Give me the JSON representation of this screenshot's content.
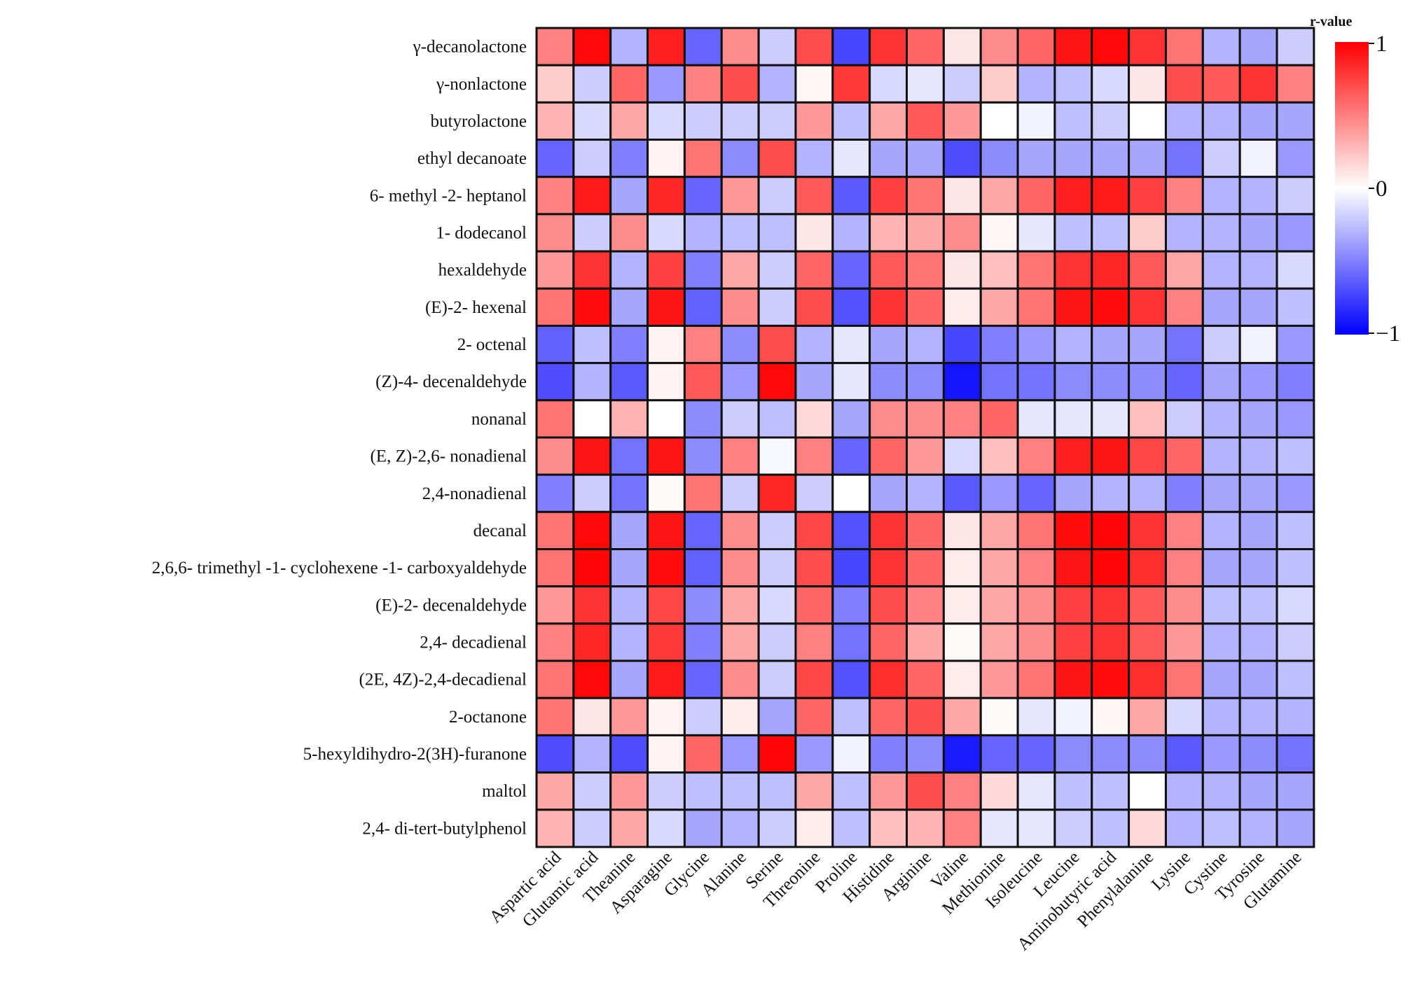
{
  "chart_data": {
    "type": "heatmap",
    "title": "",
    "rows": [
      "γ-decanolactone",
      "γ-nonlactone",
      "butyrolactone",
      "ethyl decanoate",
      "6- methyl -2- heptanol",
      "1- dodecanol",
      "hexaldehyde",
      "(E)-2- hexenal",
      "2- octenal",
      "(Z)-4- decenaldehyde",
      "nonanal",
      "(E, Z)-2,6- nonadienal",
      "2,4-nonadienal",
      "decanal",
      "2,6,6- trimethyl -1- cyclohexene -1- carboxyaldehyde",
      "(E)-2- decenaldehyde",
      "2,4- decadienal",
      "(2E, 4Z)-2,4-decadienal",
      "2-octanone",
      "5-hexyldihydro-2(3H)-furanone",
      "maltol",
      "2,4- di-tert-butylphenol"
    ],
    "columns": [
      "Aspartic acid",
      "Glutamic acid",
      "Theanine",
      "Asparagine",
      "Glycine",
      "Alanine",
      "Serine",
      "Threonine",
      "Proline",
      "Histidine",
      "Arginine",
      "Valine",
      "Methionine",
      "Isoleucine",
      "Leucine",
      "Aminobutyric acid",
      "Phenylalanine",
      "Lysine",
      "Cystine",
      "Tyrosine",
      "Glutamine"
    ],
    "values": [
      [
        0.5,
        0.97,
        -0.3,
        0.88,
        -0.6,
        0.45,
        -0.2,
        0.7,
        -0.72,
        0.8,
        0.6,
        0.1,
        0.45,
        0.6,
        0.92,
        0.97,
        0.8,
        0.55,
        -0.3,
        -0.35,
        -0.2
      ],
      [
        0.2,
        -0.2,
        0.6,
        -0.4,
        0.5,
        0.7,
        -0.3,
        0.03,
        0.78,
        -0.15,
        -0.1,
        -0.2,
        0.2,
        -0.3,
        -0.25,
        -0.15,
        0.1,
        0.7,
        0.65,
        0.8,
        0.5
      ],
      [
        0.3,
        -0.15,
        0.35,
        -0.15,
        -0.2,
        -0.2,
        -0.2,
        0.4,
        -0.25,
        0.35,
        0.65,
        0.4,
        0.0,
        -0.05,
        -0.25,
        -0.2,
        0.0,
        -0.3,
        -0.3,
        -0.35,
        -0.35
      ],
      [
        -0.6,
        -0.2,
        -0.5,
        0.05,
        0.55,
        -0.45,
        0.7,
        -0.3,
        -0.1,
        -0.35,
        -0.35,
        -0.7,
        -0.45,
        -0.35,
        -0.35,
        -0.35,
        -0.35,
        -0.55,
        -0.2,
        -0.05,
        -0.4
      ],
      [
        0.5,
        0.9,
        -0.35,
        0.85,
        -0.6,
        0.4,
        -0.2,
        0.65,
        -0.65,
        0.75,
        0.55,
        0.1,
        0.35,
        0.6,
        0.88,
        0.9,
        0.75,
        0.5,
        -0.3,
        -0.3,
        -0.2
      ],
      [
        0.45,
        -0.2,
        0.45,
        -0.15,
        -0.3,
        -0.25,
        -0.25,
        0.1,
        -0.3,
        0.3,
        0.35,
        0.45,
        0.03,
        -0.1,
        -0.25,
        -0.25,
        0.2,
        -0.3,
        -0.3,
        -0.35,
        -0.4
      ],
      [
        0.4,
        0.8,
        -0.3,
        0.75,
        -0.5,
        0.35,
        -0.2,
        0.6,
        -0.6,
        0.65,
        0.55,
        0.1,
        0.25,
        0.55,
        0.8,
        0.85,
        0.65,
        0.35,
        -0.3,
        -0.3,
        -0.15
      ],
      [
        0.55,
        0.95,
        -0.35,
        0.92,
        -0.62,
        0.45,
        -0.2,
        0.7,
        -0.68,
        0.8,
        0.6,
        0.08,
        0.35,
        0.55,
        0.92,
        0.95,
        0.8,
        0.5,
        -0.35,
        -0.35,
        -0.25
      ],
      [
        -0.62,
        -0.25,
        -0.5,
        0.05,
        0.5,
        -0.45,
        0.7,
        -0.3,
        -0.1,
        -0.35,
        -0.3,
        -0.72,
        -0.5,
        -0.4,
        -0.3,
        -0.35,
        -0.35,
        -0.55,
        -0.2,
        -0.05,
        -0.4
      ],
      [
        -0.7,
        -0.3,
        -0.65,
        0.05,
        0.65,
        -0.4,
        0.97,
        -0.35,
        -0.1,
        -0.45,
        -0.45,
        -0.92,
        -0.55,
        -0.55,
        -0.45,
        -0.45,
        -0.45,
        -0.6,
        -0.35,
        -0.4,
        -0.5
      ],
      [
        0.55,
        0.0,
        0.3,
        0.0,
        -0.45,
        -0.2,
        -0.25,
        0.15,
        -0.35,
        0.45,
        0.45,
        0.5,
        0.6,
        -0.1,
        -0.1,
        -0.1,
        0.25,
        -0.2,
        -0.3,
        -0.35,
        -0.4
      ],
      [
        0.45,
        0.92,
        -0.55,
        0.92,
        -0.45,
        0.5,
        -0.03,
        0.5,
        -0.6,
        0.6,
        0.4,
        -0.15,
        0.25,
        0.5,
        0.88,
        0.92,
        0.72,
        0.6,
        -0.3,
        -0.3,
        -0.25
      ],
      [
        -0.5,
        -0.2,
        -0.55,
        0.02,
        0.55,
        -0.2,
        0.85,
        -0.2,
        0.0,
        -0.35,
        -0.3,
        -0.65,
        -0.4,
        -0.6,
        -0.35,
        -0.3,
        -0.3,
        -0.5,
        -0.35,
        -0.35,
        -0.4
      ],
      [
        0.55,
        0.97,
        -0.35,
        0.92,
        -0.6,
        0.45,
        -0.2,
        0.72,
        -0.68,
        0.8,
        0.6,
        0.1,
        0.35,
        0.55,
        0.95,
        0.98,
        0.8,
        0.5,
        -0.3,
        -0.35,
        -0.25
      ],
      [
        0.55,
        0.98,
        -0.35,
        0.95,
        -0.62,
        0.45,
        -0.2,
        0.7,
        -0.72,
        0.8,
        0.6,
        0.08,
        0.35,
        0.5,
        0.92,
        0.98,
        0.82,
        0.5,
        -0.35,
        -0.35,
        -0.25
      ],
      [
        0.4,
        0.8,
        -0.3,
        0.72,
        -0.45,
        0.35,
        -0.15,
        0.6,
        -0.5,
        0.7,
        0.5,
        0.08,
        0.35,
        0.45,
        0.75,
        0.8,
        0.65,
        0.45,
        -0.25,
        -0.25,
        -0.15
      ],
      [
        0.5,
        0.85,
        -0.3,
        0.78,
        -0.5,
        0.35,
        -0.2,
        0.5,
        -0.55,
        0.6,
        0.35,
        0.02,
        0.35,
        0.45,
        0.75,
        0.8,
        0.65,
        0.4,
        -0.3,
        -0.3,
        -0.2
      ],
      [
        0.55,
        0.97,
        -0.35,
        0.9,
        -0.6,
        0.45,
        -0.2,
        0.72,
        -0.68,
        0.82,
        0.6,
        0.08,
        0.4,
        0.55,
        0.92,
        0.95,
        0.82,
        0.55,
        -0.35,
        -0.35,
        -0.25
      ],
      [
        0.55,
        0.1,
        0.4,
        0.05,
        -0.2,
        0.08,
        -0.35,
        0.6,
        -0.25,
        0.6,
        0.7,
        0.35,
        0.02,
        -0.1,
        -0.05,
        0.03,
        0.35,
        -0.15,
        -0.3,
        -0.3,
        -0.3
      ],
      [
        -0.7,
        -0.3,
        -0.7,
        0.05,
        0.6,
        -0.4,
        0.98,
        -0.4,
        -0.05,
        -0.5,
        -0.45,
        -0.9,
        -0.6,
        -0.6,
        -0.45,
        -0.45,
        -0.45,
        -0.65,
        -0.4,
        -0.45,
        -0.55
      ],
      [
        0.35,
        -0.2,
        0.4,
        -0.2,
        -0.25,
        -0.25,
        -0.25,
        0.35,
        -0.25,
        0.4,
        0.7,
        0.5,
        0.15,
        -0.1,
        -0.25,
        -0.25,
        0.0,
        -0.3,
        -0.3,
        -0.35,
        -0.35
      ],
      [
        0.3,
        -0.2,
        0.35,
        -0.15,
        -0.35,
        -0.3,
        -0.2,
        0.08,
        -0.25,
        0.25,
        0.3,
        0.5,
        -0.1,
        -0.1,
        -0.2,
        -0.25,
        0.15,
        -0.3,
        -0.25,
        -0.3,
        -0.35
      ]
    ],
    "colorbar": {
      "title": "r-value",
      "min": -1,
      "max": 1,
      "ticks": [
        "1",
        "0",
        "−1"
      ],
      "colors": {
        "low": "#0000ff",
        "mid": "#ffffff",
        "high": "#ff0000"
      }
    },
    "xlabel": "",
    "ylabel": "",
    "grid": true
  }
}
